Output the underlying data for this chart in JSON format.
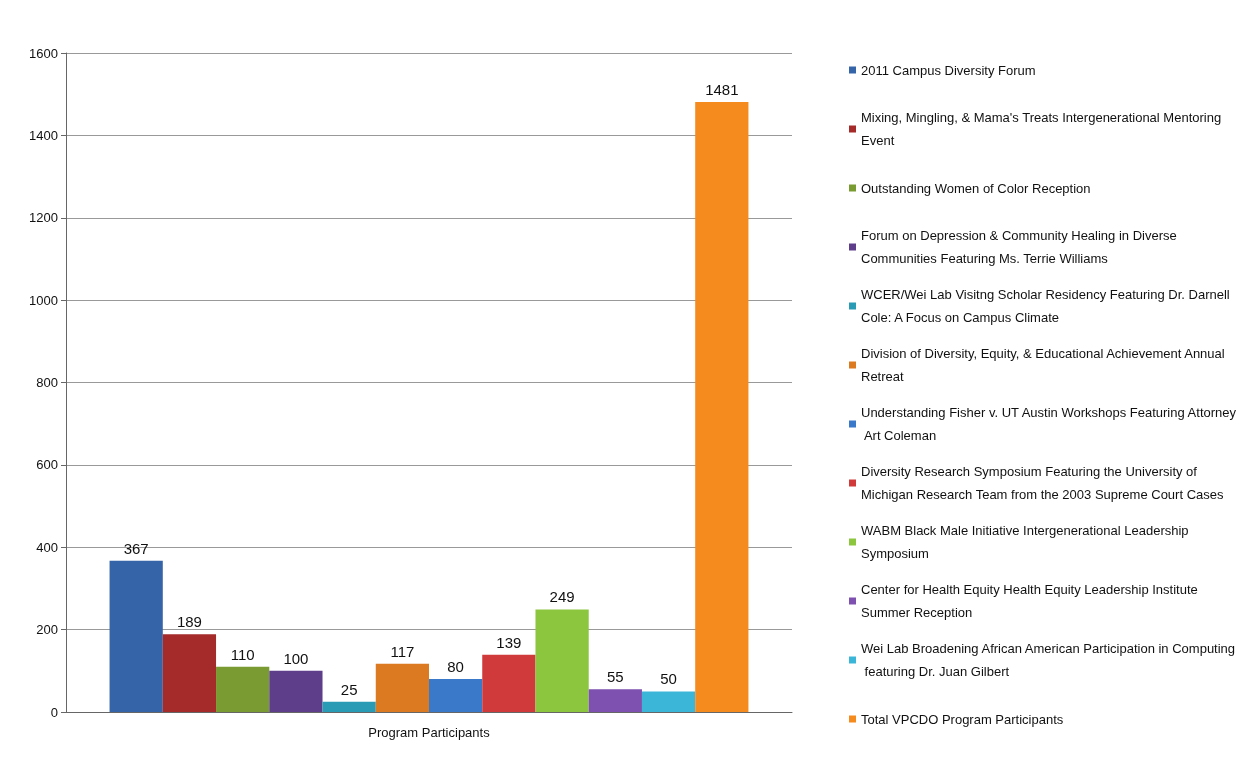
{
  "chart_data": {
    "type": "bar",
    "categories": [
      "Program Participants"
    ],
    "series": [
      {
        "name": "2011 Campus Diversity Forum",
        "color": "#3565a8",
        "values": [
          367
        ]
      },
      {
        "name": "Mixing, Mingling, & Mama's Treats Intergenerational Mentoring Event",
        "color": "#a52b2b",
        "values": [
          189
        ]
      },
      {
        "name": "Outstanding Women of Color Reception",
        "color": "#7a9a32",
        "values": [
          110
        ]
      },
      {
        "name": "Forum on Depression & Community Healing in Diverse Communities Featuring Ms. Terrie Williams",
        "color": "#5e3d8a",
        "values": [
          100
        ]
      },
      {
        "name": "WCER/Wei Lab Visitng Scholar Residency Featuring Dr. Darnell Cole: A Focus on Campus Climate",
        "color": "#2a9bb5",
        "values": [
          25
        ]
      },
      {
        "name": "Division of Diversity, Equity, & Educational Achievement Annual Retreat",
        "color": "#dc7a22",
        "values": [
          117
        ]
      },
      {
        "name": "Understanding Fisher v. UT Austin Workshops Featuring Attorney Art Coleman",
        "color": "#3a78c9",
        "values": [
          80
        ]
      },
      {
        "name": "Diversity Research Symposium Featuring the University of Michigan Research Team from the 2003 Supreme Court Cases",
        "color": "#d13a3a",
        "values": [
          139
        ]
      },
      {
        "name": "WABM Black Male Initiative Intergenerational Leadership Symposium",
        "color": "#8cc63e",
        "values": [
          249
        ]
      },
      {
        "name": "Center for Health Equity Health Equity Leadership Institute Summer Reception",
        "color": "#7e50b0",
        "values": [
          55
        ]
      },
      {
        "name": "Wei Lab Broadening African American Participation in Computing featuring Dr. Juan Gilbert",
        "color": "#3cb6d8",
        "values": [
          50
        ]
      },
      {
        "name": "Total VPCDO Program Participants",
        "color": "#f58b1f",
        "values": [
          1481
        ]
      }
    ],
    "ylim": [
      0,
      1600
    ],
    "yticks": [
      0,
      200,
      400,
      600,
      800,
      1000,
      1200,
      1400,
      1600
    ],
    "grid": true,
    "legend": "right",
    "data_labels": true
  }
}
